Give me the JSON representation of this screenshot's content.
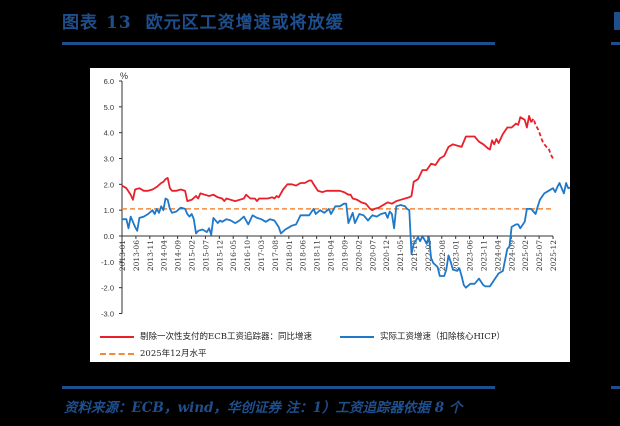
{
  "header": {
    "figure_label": "图表",
    "figure_number": "13",
    "title": "欧元区工资增速或将放缓"
  },
  "footer": {
    "source": "资料来源：ECB，wind，华创证券   注：1）工资追踪器依据 8 个"
  },
  "colors": {
    "title_blue": "#1f4e8c",
    "red_series": "#e8202a",
    "blue_series": "#1f78c8",
    "orange_ref": "#f08a3c"
  },
  "chart_data": {
    "type": "line",
    "title": "欧元区工资增速或将放缓",
    "xlabel": "",
    "ylabel": "%",
    "ylim": [
      -3.0,
      6.0
    ],
    "yticks": [
      "6.0",
      "5.0",
      "4.0",
      "3.0",
      "2.0",
      "1.0",
      "0.0",
      "-1.0",
      "-2.0",
      "-3.0"
    ],
    "x_start": "2013-01",
    "x_end": "2025-12",
    "x_ticks": [
      "2013-01",
      "2013-06",
      "2013-11",
      "2014-04",
      "2014-09",
      "2015-02",
      "2015-07",
      "2015-12",
      "2016-05",
      "2016-10",
      "2017-03",
      "2017-08",
      "2018-01",
      "2018-06",
      "2018-11",
      "2019-04",
      "2019-09",
      "2020-02",
      "2020-07",
      "2020-12",
      "2021-05",
      "2021-10",
      "2022-03",
      "2022-08",
      "2023-01",
      "2023-06",
      "2023-11",
      "2024-04",
      "2024-09",
      "2025-02",
      "2025-07",
      "2025-12"
    ],
    "grid": false,
    "legend_position": "bottom",
    "series": [
      {
        "name": "剔除一次性支付的ECB工资追踪器：同比增速",
        "color": "#e8202a",
        "style": "solid",
        "forecast_from_index": 150,
        "points": [
          [
            0,
            1.95
          ],
          [
            2,
            1.9
          ],
          [
            4,
            1.75
          ],
          [
            6,
            1.65
          ],
          [
            8,
            1.4
          ],
          [
            10,
            1.8
          ],
          [
            12,
            1.85
          ],
          [
            14,
            1.85
          ],
          [
            16,
            1.75
          ],
          [
            18,
            1.75
          ],
          [
            20,
            1.85
          ],
          [
            22,
            1.9
          ],
          [
            24,
            2.05
          ],
          [
            26,
            2.15
          ],
          [
            28,
            2.25
          ],
          [
            29,
            2.2
          ],
          [
            30,
            1.85
          ],
          [
            32,
            1.75
          ],
          [
            34,
            1.75
          ],
          [
            36,
            1.8
          ],
          [
            38,
            1.75
          ],
          [
            40,
            1.7
          ],
          [
            42,
            1.35
          ],
          [
            44,
            1.4
          ],
          [
            46,
            1.55
          ],
          [
            47,
            1.45
          ],
          [
            48,
            1.65
          ],
          [
            50,
            1.6
          ],
          [
            52,
            1.55
          ],
          [
            54,
            1.6
          ],
          [
            56,
            1.5
          ],
          [
            58,
            1.5
          ],
          [
            60,
            1.4
          ],
          [
            62,
            1.45
          ],
          [
            64,
            1.45
          ],
          [
            66,
            1.4
          ],
          [
            68,
            1.35
          ],
          [
            70,
            1.4
          ],
          [
            72,
            1.4
          ],
          [
            74,
            1.5
          ],
          [
            76,
            1.6
          ],
          [
            78,
            1.45
          ],
          [
            80,
            1.45
          ],
          [
            82,
            1.35
          ],
          [
            84,
            1.45
          ],
          [
            86,
            1.45
          ],
          [
            88,
            1.45
          ],
          [
            90,
            1.5
          ],
          [
            92,
            1.5
          ],
          [
            94,
            1.5
          ],
          [
            96,
            1.45
          ],
          [
            98,
            1.4
          ],
          [
            100,
            1.6
          ],
          [
            102,
            1.65
          ],
          [
            104,
            1.85
          ],
          [
            106,
            2.0
          ],
          [
            108,
            2.05
          ],
          [
            110,
            2.0
          ],
          [
            112,
            2.05
          ],
          [
            114,
            2.0
          ],
          [
            116,
            2.1
          ],
          [
            118,
            2.15
          ],
          [
            120,
            2.0
          ],
          [
            122,
            1.85
          ],
          [
            124,
            1.75
          ],
          [
            126,
            1.7
          ],
          [
            128,
            1.75
          ],
          [
            130,
            1.7
          ],
          [
            132,
            1.7
          ],
          [
            134,
            1.7
          ],
          [
            136,
            1.6
          ],
          [
            138,
            1.45
          ],
          [
            140,
            1.4
          ],
          [
            142,
            1.3
          ],
          [
            144,
            1.25
          ],
          [
            146,
            1.1
          ],
          [
            148,
            1.0
          ],
          [
            150,
            1.0
          ],
          [
            152,
            1.1
          ],
          [
            154,
            1.2
          ],
          [
            156,
            1.25
          ],
          [
            158,
            1.4
          ],
          [
            160,
            1.5
          ],
          [
            162,
            1.6
          ],
          [
            164,
            1.7
          ],
          [
            166,
            2.3
          ],
          [
            168,
            2.4
          ],
          [
            170,
            2.9
          ],
          [
            172,
            3.05
          ],
          [
            174,
            3.35
          ],
          [
            176,
            3.5
          ],
          [
            178,
            3.8
          ],
          [
            180,
            3.95
          ],
          [
            182,
            4.1
          ],
          [
            184,
            4.05
          ],
          [
            186,
            4.1
          ],
          [
            188,
            3.9
          ],
          [
            190,
            3.6
          ],
          [
            192,
            3.9
          ],
          [
            194,
            4.0
          ],
          [
            196,
            4.3
          ],
          [
            198,
            4.45
          ],
          [
            200,
            4.6
          ],
          [
            202,
            4.55
          ],
          [
            204,
            4.65
          ],
          [
            206,
            4.45
          ],
          [
            208,
            4.3
          ],
          [
            210,
            3.95
          ],
          [
            212,
            3.6
          ],
          [
            214,
            3.4
          ],
          [
            216,
            3.1
          ]
        ]
      },
      {
        "name": "实际工资增速（扣除核心HICP）",
        "color": "#1f78c8",
        "style": "solid",
        "points": []
      },
      {
        "name": "2025年12月水平",
        "color": "#f08a3c",
        "style": "dashed",
        "value": 1.05
      }
    ]
  },
  "red_months": [
    [
      0,
      1.95
    ],
    [
      2,
      1.85
    ],
    [
      4,
      1.6
    ],
    [
      5,
      1.4
    ],
    [
      6,
      1.8
    ],
    [
      8,
      1.85
    ],
    [
      10,
      1.75
    ],
    [
      12,
      1.75
    ],
    [
      14,
      1.8
    ],
    [
      16,
      1.9
    ],
    [
      18,
      2.05
    ],
    [
      19,
      2.1
    ],
    [
      20,
      2.2
    ],
    [
      21,
      2.25
    ],
    [
      22,
      1.85
    ],
    [
      23,
      1.75
    ],
    [
      25,
      1.75
    ],
    [
      27,
      1.8
    ],
    [
      29,
      1.75
    ],
    [
      30,
      1.35
    ],
    [
      32,
      1.4
    ],
    [
      34,
      1.55
    ],
    [
      35,
      1.45
    ],
    [
      36,
      1.65
    ],
    [
      38,
      1.6
    ],
    [
      40,
      1.55
    ],
    [
      42,
      1.6
    ],
    [
      44,
      1.5
    ],
    [
      46,
      1.45
    ],
    [
      47,
      1.35
    ],
    [
      48,
      1.45
    ],
    [
      50,
      1.4
    ],
    [
      52,
      1.35
    ],
    [
      54,
      1.4
    ],
    [
      56,
      1.45
    ],
    [
      57,
      1.6
    ],
    [
      59,
      1.45
    ],
    [
      61,
      1.45
    ],
    [
      62,
      1.35
    ],
    [
      63,
      1.45
    ],
    [
      65,
      1.45
    ],
    [
      67,
      1.45
    ],
    [
      69,
      1.5
    ],
    [
      70,
      1.45
    ],
    [
      71,
      1.55
    ],
    [
      72,
      1.5
    ],
    [
      74,
      1.8
    ],
    [
      76,
      2.0
    ],
    [
      78,
      2.0
    ],
    [
      80,
      1.95
    ],
    [
      82,
      2.05
    ],
    [
      84,
      2.05
    ],
    [
      86,
      2.15
    ],
    [
      87,
      2.15
    ],
    [
      88,
      2.0
    ],
    [
      90,
      1.75
    ],
    [
      92,
      1.7
    ],
    [
      94,
      1.75
    ],
    [
      96,
      1.75
    ],
    [
      98,
      1.75
    ],
    [
      100,
      1.75
    ],
    [
      102,
      1.7
    ],
    [
      104,
      1.6
    ],
    [
      105,
      1.6
    ],
    [
      106,
      1.45
    ],
    [
      108,
      1.4
    ],
    [
      110,
      1.3
    ],
    [
      112,
      1.25
    ],
    [
      114,
      1.05
    ],
    [
      115,
      1.0
    ],
    [
      116,
      1.05
    ],
    [
      118,
      1.1
    ],
    [
      120,
      1.2
    ],
    [
      122,
      1.3
    ],
    [
      124,
      1.25
    ],
    [
      126,
      1.35
    ],
    [
      128,
      1.4
    ],
    [
      130,
      1.45
    ],
    [
      132,
      1.5
    ],
    [
      133,
      1.55
    ],
    [
      134,
      2.1
    ],
    [
      136,
      2.2
    ],
    [
      138,
      2.55
    ],
    [
      140,
      2.55
    ],
    [
      142,
      2.8
    ],
    [
      144,
      2.75
    ],
    [
      146,
      3.0
    ],
    [
      148,
      3.1
    ],
    [
      150,
      3.45
    ],
    [
      152,
      3.55
    ],
    [
      154,
      3.5
    ],
    [
      156,
      3.45
    ],
    [
      158,
      3.85
    ],
    [
      160,
      3.85
    ],
    [
      162,
      3.85
    ],
    [
      164,
      3.65
    ],
    [
      166,
      3.55
    ],
    [
      168,
      3.4
    ],
    [
      169,
      3.35
    ],
    [
      170,
      3.7
    ],
    [
      171,
      3.55
    ],
    [
      172,
      3.75
    ],
    [
      173,
      3.6
    ],
    [
      175,
      3.95
    ],
    [
      177,
      4.2
    ],
    [
      179,
      4.2
    ],
    [
      181,
      4.35
    ],
    [
      182,
      4.3
    ],
    [
      183,
      4.6
    ],
    [
      185,
      4.5
    ],
    [
      186,
      4.2
    ],
    [
      187,
      4.65
    ],
    [
      188,
      4.4
    ],
    [
      189,
      4.55
    ],
    [
      190,
      4.3
    ],
    [
      191,
      4.15
    ],
    [
      192,
      3.95
    ],
    [
      193,
      3.7
    ],
    [
      194,
      3.55
    ],
    [
      195,
      3.45
    ],
    [
      196,
      3.4
    ],
    [
      197,
      3.15
    ],
    [
      198,
      3.0
    ]
  ],
  "blue_months": [
    [
      0,
      0.65
    ],
    [
      2,
      0.65
    ],
    [
      3,
      0.3
    ],
    [
      4,
      0.75
    ],
    [
      6,
      0.35
    ],
    [
      7,
      0.2
    ],
    [
      8,
      0.7
    ],
    [
      10,
      0.75
    ],
    [
      12,
      0.85
    ],
    [
      14,
      1.0
    ],
    [
      15,
      0.85
    ],
    [
      16,
      1.05
    ],
    [
      17,
      0.9
    ],
    [
      18,
      1.15
    ],
    [
      19,
      1.0
    ],
    [
      20,
      1.45
    ],
    [
      21,
      1.4
    ],
    [
      22,
      1.05
    ],
    [
      23,
      0.9
    ],
    [
      25,
      0.95
    ],
    [
      27,
      1.1
    ],
    [
      29,
      1.05
    ],
    [
      30,
      0.85
    ],
    [
      31,
      0.75
    ],
    [
      32,
      0.85
    ],
    [
      33,
      0.65
    ],
    [
      34,
      0.1
    ],
    [
      35,
      0.2
    ],
    [
      37,
      0.25
    ],
    [
      39,
      0.15
    ],
    [
      40,
      0.3
    ],
    [
      41,
      0.05
    ],
    [
      42,
      0.7
    ],
    [
      44,
      0.5
    ],
    [
      45,
      0.6
    ],
    [
      46,
      0.55
    ],
    [
      48,
      0.65
    ],
    [
      50,
      0.6
    ],
    [
      52,
      0.5
    ],
    [
      54,
      0.6
    ],
    [
      56,
      0.75
    ],
    [
      58,
      0.45
    ],
    [
      60,
      0.8
    ],
    [
      62,
      0.7
    ],
    [
      64,
      0.65
    ],
    [
      66,
      0.55
    ],
    [
      68,
      0.65
    ],
    [
      70,
      0.6
    ],
    [
      72,
      0.35
    ],
    [
      73,
      0.1
    ],
    [
      75,
      0.25
    ],
    [
      76,
      0.3
    ],
    [
      78,
      0.4
    ],
    [
      80,
      0.45
    ],
    [
      82,
      0.8
    ],
    [
      84,
      0.8
    ],
    [
      86,
      0.8
    ],
    [
      88,
      1.05
    ],
    [
      89,
      0.85
    ],
    [
      91,
      1.0
    ],
    [
      93,
      0.9
    ],
    [
      95,
      1.05
    ],
    [
      96,
      0.85
    ],
    [
      98,
      1.15
    ],
    [
      100,
      1.15
    ],
    [
      102,
      1.25
    ],
    [
      103,
      1.25
    ],
    [
      104,
      0.5
    ],
    [
      106,
      0.9
    ],
    [
      107,
      0.5
    ],
    [
      109,
      0.85
    ],
    [
      111,
      0.8
    ],
    [
      113,
      0.6
    ],
    [
      115,
      0.8
    ],
    [
      117,
      0.75
    ],
    [
      119,
      0.85
    ],
    [
      121,
      0.9
    ],
    [
      122,
      0.7
    ],
    [
      123,
      0.95
    ],
    [
      124,
      0.85
    ],
    [
      125,
      0.3
    ],
    [
      126,
      1.15
    ],
    [
      128,
      1.2
    ],
    [
      130,
      1.15
    ],
    [
      131,
      1.05
    ],
    [
      132,
      1.0
    ],
    [
      133,
      -0.7
    ],
    [
      134,
      -0.3
    ],
    [
      136,
      -0.05
    ],
    [
      137,
      -0.2
    ],
    [
      138,
      0.0
    ],
    [
      139,
      -0.15
    ],
    [
      140,
      -0.3
    ],
    [
      141,
      -0.05
    ],
    [
      142,
      -0.85
    ],
    [
      143,
      -1.05
    ],
    [
      145,
      -1.2
    ],
    [
      146,
      -1.55
    ],
    [
      148,
      -1.55
    ],
    [
      149,
      -1.3
    ],
    [
      150,
      -0.75
    ],
    [
      151,
      -1.0
    ],
    [
      152,
      -1.3
    ],
    [
      154,
      -1.35
    ],
    [
      155,
      -1.25
    ],
    [
      156,
      -1.55
    ],
    [
      157,
      -1.9
    ],
    [
      158,
      -2.0
    ],
    [
      160,
      -1.85
    ],
    [
      162,
      -1.85
    ],
    [
      164,
      -1.65
    ],
    [
      166,
      -1.9
    ],
    [
      167,
      -1.95
    ],
    [
      169,
      -1.95
    ],
    [
      171,
      -1.7
    ],
    [
      173,
      -1.45
    ],
    [
      175,
      -1.35
    ],
    [
      177,
      -0.5
    ],
    [
      178,
      -0.4
    ],
    [
      179,
      0.35
    ],
    [
      181,
      0.45
    ],
    [
      182,
      0.45
    ],
    [
      183,
      0.3
    ],
    [
      185,
      0.55
    ],
    [
      186,
      1.05
    ],
    [
      188,
      1.05
    ],
    [
      189,
      0.95
    ],
    [
      190,
      0.85
    ],
    [
      191,
      1.15
    ],
    [
      192,
      1.4
    ],
    [
      194,
      1.65
    ],
    [
      196,
      1.75
    ],
    [
      198,
      1.85
    ],
    [
      199,
      1.7
    ],
    [
      200,
      1.9
    ],
    [
      201,
      2.05
    ],
    [
      203,
      1.65
    ],
    [
      204,
      2.05
    ],
    [
      205,
      1.85
    ],
    [
      207,
      1.9
    ],
    [
      208,
      1.75
    ],
    [
      210,
      1.45
    ],
    [
      211,
      1.3
    ],
    [
      213,
      1.45
    ],
    [
      214,
      1.2
    ],
    [
      215,
      1.05
    ]
  ]
}
